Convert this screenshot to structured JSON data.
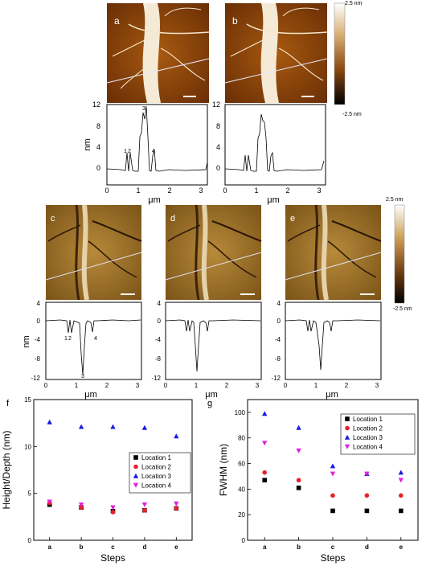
{
  "panels_top": {
    "a": {
      "label": "a"
    },
    "b": {
      "label": "b"
    },
    "scale_top": {
      "max": "2.5 nm",
      "min": "-2.5 nm"
    }
  },
  "profile_top": {
    "ylabel": "nm",
    "xlabel": "μm",
    "yticks": [
      "12",
      "8",
      "4",
      "0"
    ],
    "xticks": [
      "0",
      "1",
      "2",
      "3"
    ],
    "markers": [
      "1",
      "2",
      "3",
      "4"
    ]
  },
  "panels_mid": {
    "c": {
      "label": "c"
    },
    "d": {
      "label": "d"
    },
    "e": {
      "label": "e"
    },
    "scale_mid": {
      "max": "2.5 nm",
      "min": "-2.5 nm"
    }
  },
  "profile_mid": {
    "ylabel": "nm",
    "xlabel": "μm",
    "yticks": [
      "4",
      "0",
      "-4",
      "-8",
      "-12"
    ],
    "xticks": [
      "0",
      "1",
      "2",
      "3"
    ],
    "markers": [
      "1",
      "2",
      "3",
      "4"
    ]
  },
  "chart_data": [
    {
      "panel": "f",
      "type": "scatter",
      "xlabel": "Steps",
      "ylabel": "Height/Depth (nm)",
      "categories": [
        "a",
        "b",
        "c",
        "d",
        "e"
      ],
      "ylim": [
        0,
        15
      ],
      "yticks": [
        "0",
        "5",
        "10",
        "15"
      ],
      "legend_position": "center-right",
      "series": [
        {
          "name": "Location 1",
          "color": "#000000",
          "marker": "square",
          "values": [
            3.8,
            3.5,
            3.1,
            3.2,
            3.4
          ]
        },
        {
          "name": "Location 2",
          "color": "#e8202a",
          "marker": "circle",
          "values": [
            4.0,
            3.5,
            3.0,
            3.2,
            3.4
          ]
        },
        {
          "name": "Location 3",
          "color": "#1a1ae6",
          "marker": "triangle-up",
          "values": [
            12.6,
            12.1,
            12.1,
            12.0,
            11.1
          ]
        },
        {
          "name": "Location 4",
          "color": "#e020e0",
          "marker": "triangle-down",
          "values": [
            4.1,
            3.8,
            3.5,
            3.8,
            3.9
          ]
        }
      ]
    },
    {
      "panel": "g",
      "type": "scatter",
      "xlabel": "Steps",
      "ylabel": "FWHM (nm)",
      "categories": [
        "a",
        "b",
        "c",
        "d",
        "e"
      ],
      "ylim": [
        0,
        110
      ],
      "yticks": [
        "0",
        "20",
        "40",
        "60",
        "80",
        "100"
      ],
      "legend_position": "top-right",
      "series": [
        {
          "name": "Location 1",
          "color": "#000000",
          "marker": "square",
          "values": [
            47,
            41,
            23,
            23,
            23
          ]
        },
        {
          "name": "Location 2",
          "color": "#e8202a",
          "marker": "circle",
          "values": [
            53,
            47,
            35,
            35,
            35
          ]
        },
        {
          "name": "Location 3",
          "color": "#1a1ae6",
          "marker": "triangle-up",
          "values": [
            99,
            88,
            58,
            52,
            53
          ]
        },
        {
          "name": "Location 4",
          "color": "#e020e0",
          "marker": "triangle-down",
          "values": [
            76,
            70,
            52,
            52,
            47
          ]
        }
      ]
    }
  ]
}
